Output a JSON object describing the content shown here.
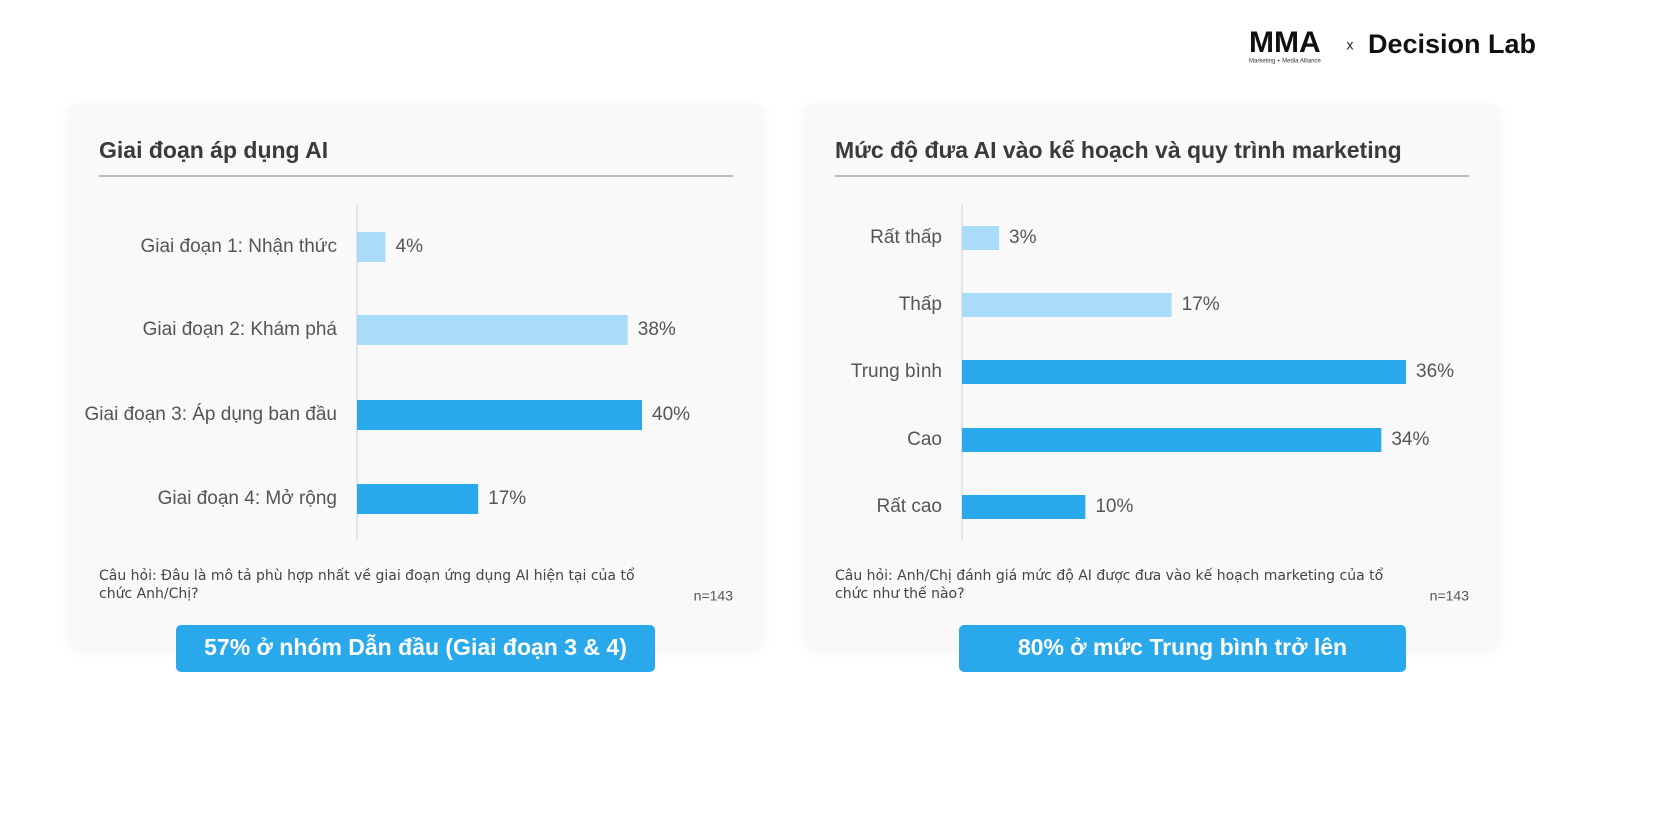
{
  "header": {
    "logo_left": "MMA",
    "logo_left_sub": "Marketing + Media Alliance",
    "separator": "x",
    "logo_right": "Decision Lab"
  },
  "chart_data": [
    {
      "type": "bar",
      "orientation": "horizontal",
      "title": "Giai đoạn áp dụng AI",
      "categories": [
        "Giai đoạn 1: Nhận thức",
        "Giai đoạn 2: Khám phá",
        "Giai đoạn 3: Áp dụng ban đầu",
        "Giai đoạn 4: Mở rộng"
      ],
      "values": [
        4,
        38,
        40,
        17
      ],
      "value_labels": [
        "4%",
        "38%",
        "40%",
        "17%"
      ],
      "colors": [
        "#a8dcf8",
        "#a8dcf8",
        "#29a9ec",
        "#29a9ec"
      ],
      "note": "Câu hỏi: Đâu là mô tả phù hợp nhất về giai đoạn ứng dụng AI hiện tại của tổ chức Anh/Chị?",
      "sample_size": "n=143",
      "callout": "57% ở nhóm Dẫn đầu (Giai đoạn 3 & 4)"
    },
    {
      "type": "bar",
      "orientation": "horizontal",
      "title": "Mức độ đưa AI vào kế hoạch và quy trình marketing",
      "categories": [
        "Rất thấp",
        "Thấp",
        "Trung bình",
        "Cao",
        "Rất cao"
      ],
      "values": [
        3,
        17,
        36,
        34,
        10
      ],
      "value_labels": [
        "3%",
        "17%",
        "36%",
        "34%",
        "10%"
      ],
      "colors": [
        "#a8dcf8",
        "#a8dcf8",
        "#29a9ec",
        "#29a9ec",
        "#29a9ec"
      ],
      "note": "Câu hỏi: Anh/Chị đánh giá mức độ AI được đưa vào kế hoạch marketing của tổ chức như thế nào?",
      "sample_size": "n=143",
      "callout": "80% ở mức Trung bình trở lên"
    }
  ]
}
